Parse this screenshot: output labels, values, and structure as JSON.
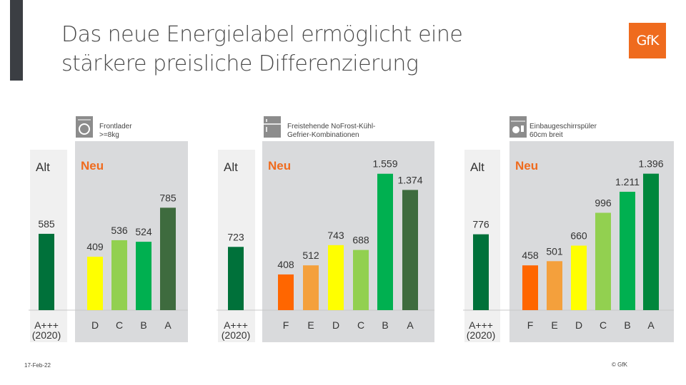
{
  "slide": {
    "title_line1": "Das neue Energielabel ermöglicht eine",
    "title_line2": "stärkere preisliche Differenzierung",
    "logo_text": "GfK",
    "date": "17-Feb-22",
    "copyright": "© GfK"
  },
  "chart_data": [
    {
      "type": "bar",
      "product_label": [
        "Frontlader",
        ">=8kg"
      ],
      "icon": "washing-machine-icon",
      "old_label": "Alt",
      "new_label": "Neu",
      "old_category": [
        "A+++",
        "(2020)"
      ],
      "old_value": 585,
      "old_value_label": "585",
      "categories": [
        "D",
        "C",
        "B",
        "A"
      ],
      "values": [
        409,
        536,
        524,
        785
      ],
      "value_labels": [
        "409",
        "536",
        "524",
        "785"
      ],
      "colors": [
        "#ffff00",
        "#92d050",
        "#00b050",
        "#3e6b3e"
      ]
    },
    {
      "type": "bar",
      "product_label": [
        "Freistehende NoFrost-Kühl-",
        "Gefrier-Kombinationen"
      ],
      "icon": "fridge-icon",
      "old_label": "Alt",
      "new_label": "Neu",
      "old_category": [
        "A+++",
        "(2020)"
      ],
      "old_value": 723,
      "old_value_label": "723",
      "categories": [
        "F",
        "E",
        "D",
        "C",
        "B",
        "A"
      ],
      "values": [
        408,
        512,
        743,
        688,
        1559,
        1374
      ],
      "value_labels": [
        "408",
        "512",
        "743",
        "688",
        "1.559",
        "1.374"
      ],
      "colors": [
        "#ff6600",
        "#f4a03c",
        "#ffff00",
        "#92d050",
        "#00b050",
        "#3e6b3e"
      ]
    },
    {
      "type": "bar",
      "product_label": [
        "Einbaugeschirrspüler",
        "60cm breit"
      ],
      "icon": "dishwasher-icon",
      "old_label": "Alt",
      "new_label": "Neu",
      "old_category": [
        "A+++",
        "(2020)"
      ],
      "old_value": 776,
      "old_value_label": "776",
      "categories": [
        "F",
        "E",
        "D",
        "C",
        "B",
        "A"
      ],
      "values": [
        458,
        501,
        660,
        996,
        1211,
        1396
      ],
      "value_labels": [
        "458",
        "501",
        "660",
        "996",
        "1.211",
        "1.396"
      ],
      "colors": [
        "#ff6600",
        "#f4a03c",
        "#ffff00",
        "#92d050",
        "#00b050",
        "#00873c"
      ]
    }
  ],
  "colors": {
    "old_bar": "#00713a",
    "new_panel_bg": "#d9dadc",
    "old_panel_bg": "#f0f0f0",
    "accent": "#ef6b1e"
  }
}
